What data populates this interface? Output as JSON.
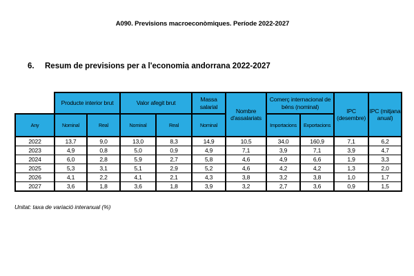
{
  "page": {
    "doc_title": "A090. Previsions macroeconòmiques. Període 2022-2027",
    "section_number": "6.",
    "section_title": "Resum de previsions per a l'economia andorrana 2022-2027",
    "footnote": "Unitat: taxa de variació interanual (%)"
  },
  "colors": {
    "header_fill": "#29ABE2",
    "border": "#000000",
    "background": "#FFFFFF"
  },
  "table": {
    "group_headers": [
      {
        "label": "Producte interior brut"
      },
      {
        "label": "Valor afegit brut"
      },
      {
        "label": "Massa salarial"
      },
      {
        "label": "Nombre d'assalariats"
      },
      {
        "label": "Comerç internacional de béns (nominal)"
      },
      {
        "label": "IPC (desembre)"
      },
      {
        "label": "IPC (mitjana anual)"
      }
    ],
    "sub_headers": [
      "Any",
      "Nominal",
      "Real",
      "Nominal",
      "Real",
      "Nominal",
      "Importacions",
      "Exportacions"
    ],
    "rows": [
      {
        "year": "2022",
        "values": [
          "13,7",
          "9,0",
          "13,0",
          "8,3",
          "14,9",
          "10,5",
          "34,0",
          "160,9",
          "7,1",
          "6,2"
        ]
      },
      {
        "year": "2023",
        "values": [
          "4,9",
          "0,8",
          "5,0",
          "0,9",
          "4,9",
          "7,1",
          "3,9",
          "7,1",
          "3,9",
          "4,7"
        ]
      },
      {
        "year": "2024",
        "values": [
          "6,0",
          "2,8",
          "5,9",
          "2,7",
          "5,8",
          "4,6",
          "4,9",
          "6,6",
          "1,9",
          "3,3"
        ]
      },
      {
        "year": "2025",
        "values": [
          "5,3",
          "3,1",
          "5,1",
          "2,9",
          "5,2",
          "4,6",
          "4,2",
          "4,2",
          "1,3",
          "2,0"
        ]
      },
      {
        "year": "2026",
        "values": [
          "4,1",
          "2,2",
          "4,1",
          "2,1",
          "4,3",
          "3,8",
          "3,2",
          "3,8",
          "1,0",
          "1,7"
        ]
      },
      {
        "year": "2027",
        "values": [
          "3,6",
          "1,8",
          "3,6",
          "1,8",
          "3,9",
          "3,2",
          "2,7",
          "3,6",
          "0,9",
          "1,5"
        ]
      }
    ]
  }
}
